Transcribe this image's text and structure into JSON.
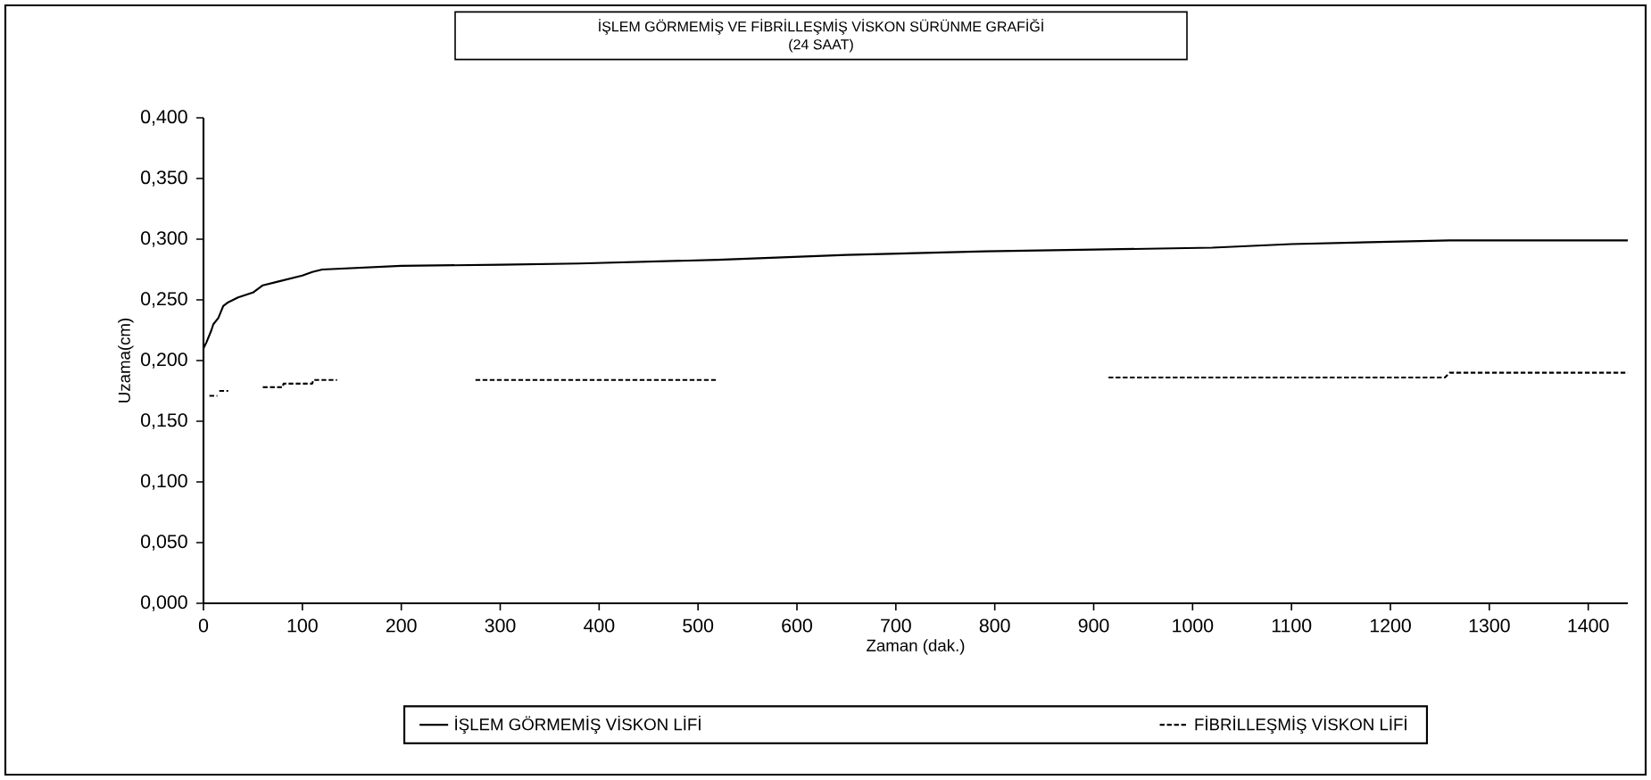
{
  "chart_data": {
    "type": "line",
    "title": "İŞLEM GÖRMEMİŞ VE FİBRİLLEŞMİŞ VİSKON SÜRÜNME GRAFİĞİ",
    "subtitle": "(24 SAAT)",
    "xlabel": "Zaman (dak.)",
    "ylabel": "Uzama(cm)",
    "xlim": [
      0,
      1440
    ],
    "xticks": [
      0,
      100,
      200,
      300,
      400,
      500,
      600,
      700,
      800,
      900,
      1000,
      1100,
      1200,
      1300,
      1400
    ],
    "ylim": [
      0,
      0.4
    ],
    "yticks": [
      {
        "value": 0,
        "label": "0,000"
      },
      {
        "value": 0.05,
        "label": "0,050"
      },
      {
        "value": 0.1,
        "label": "0,100"
      },
      {
        "value": 0.15,
        "label": "0,150"
      },
      {
        "value": 0.2,
        "label": "0,200"
      },
      {
        "value": 0.25,
        "label": "0,250"
      },
      {
        "value": 0.3,
        "label": "0,300"
      },
      {
        "value": 0.35,
        "label": "0,350"
      },
      {
        "value": 0.4,
        "label": "0,400"
      }
    ],
    "grid": false,
    "legend": "bottom",
    "marker": "none",
    "series": [
      {
        "name": "İŞLEM GÖRMEMİŞ VİSKON LİFİ",
        "color": "#000000",
        "line_style": "solid",
        "x": [
          0,
          3,
          8,
          10,
          15,
          20,
          25,
          35,
          50,
          60,
          75,
          90,
          100,
          110,
          120,
          200,
          300,
          380,
          520,
          650,
          790,
          1020,
          1100,
          1260,
          1440
        ],
        "values": [
          0.21,
          0.215,
          0.225,
          0.23,
          0.235,
          0.245,
          0.248,
          0.252,
          0.256,
          0.262,
          0.265,
          0.268,
          0.27,
          0.273,
          0.275,
          0.278,
          0.279,
          0.28,
          0.283,
          0.287,
          0.29,
          0.293,
          0.296,
          0.299,
          0.299
        ]
      },
      {
        "name": "FİBRİLLEŞMİŞ VİSKON LİFİ",
        "color": "#000000",
        "line_style": "dashed",
        "x": [
          6,
          14,
          15,
          16,
          25,
          26,
          60,
          80,
          81,
          110,
          111,
          135,
          136,
          275,
          520,
          521,
          915,
          1255,
          1260,
          1440
        ],
        "values": [
          0.171,
          0.171,
          null,
          0.175,
          0.175,
          null,
          0.178,
          0.178,
          0.181,
          0.181,
          0.184,
          0.184,
          null,
          0.184,
          0.184,
          null,
          0.186,
          0.186,
          0.19,
          0.19
        ]
      }
    ]
  }
}
